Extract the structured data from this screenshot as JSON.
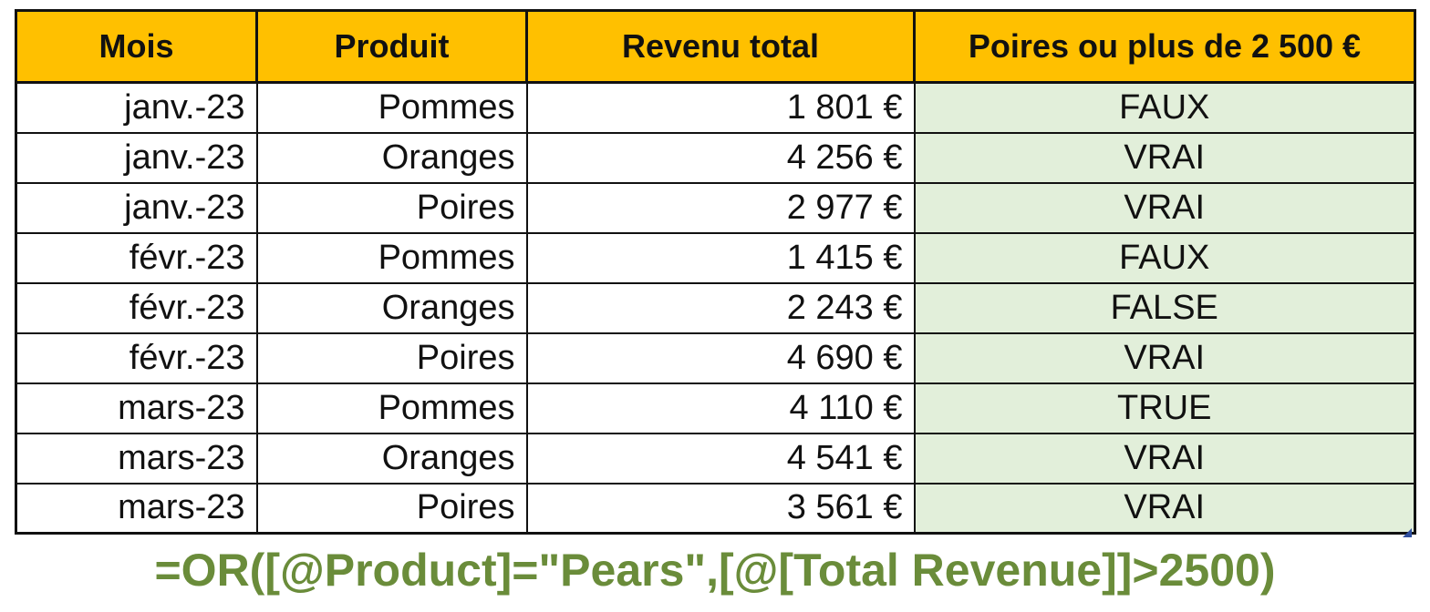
{
  "table": {
    "headers": [
      "Mois",
      "Produit",
      "Revenu total",
      "Poires ou plus de 2 500 €"
    ],
    "rows": [
      [
        "janv.-23",
        "Pommes",
        "1 801 €",
        "FAUX"
      ],
      [
        "janv.-23",
        "Oranges",
        "4 256 €",
        "VRAI"
      ],
      [
        "janv.-23",
        "Poires",
        "2 977 €",
        "VRAI"
      ],
      [
        "févr.-23",
        "Pommes",
        "1 415 €",
        "FAUX"
      ],
      [
        "févr.-23",
        "Oranges",
        "2 243 €",
        "FALSE"
      ],
      [
        "févr.-23",
        "Poires",
        "4 690 €",
        "VRAI"
      ],
      [
        "mars-23",
        "Pommes",
        "4 110 €",
        "TRUE"
      ],
      [
        "mars-23",
        "Oranges",
        "4 541 €",
        "VRAI"
      ],
      [
        "mars-23",
        "Poires",
        "3 561 €",
        "VRAI"
      ]
    ]
  },
  "formula": "=OR([@Product]=\"Pears\",[@[Total Revenue]]>2500)",
  "colors": {
    "header_fill": "#ffc000",
    "result_fill": "#e2efda",
    "formula_text": "#6a8c3a",
    "border": "#111111"
  }
}
